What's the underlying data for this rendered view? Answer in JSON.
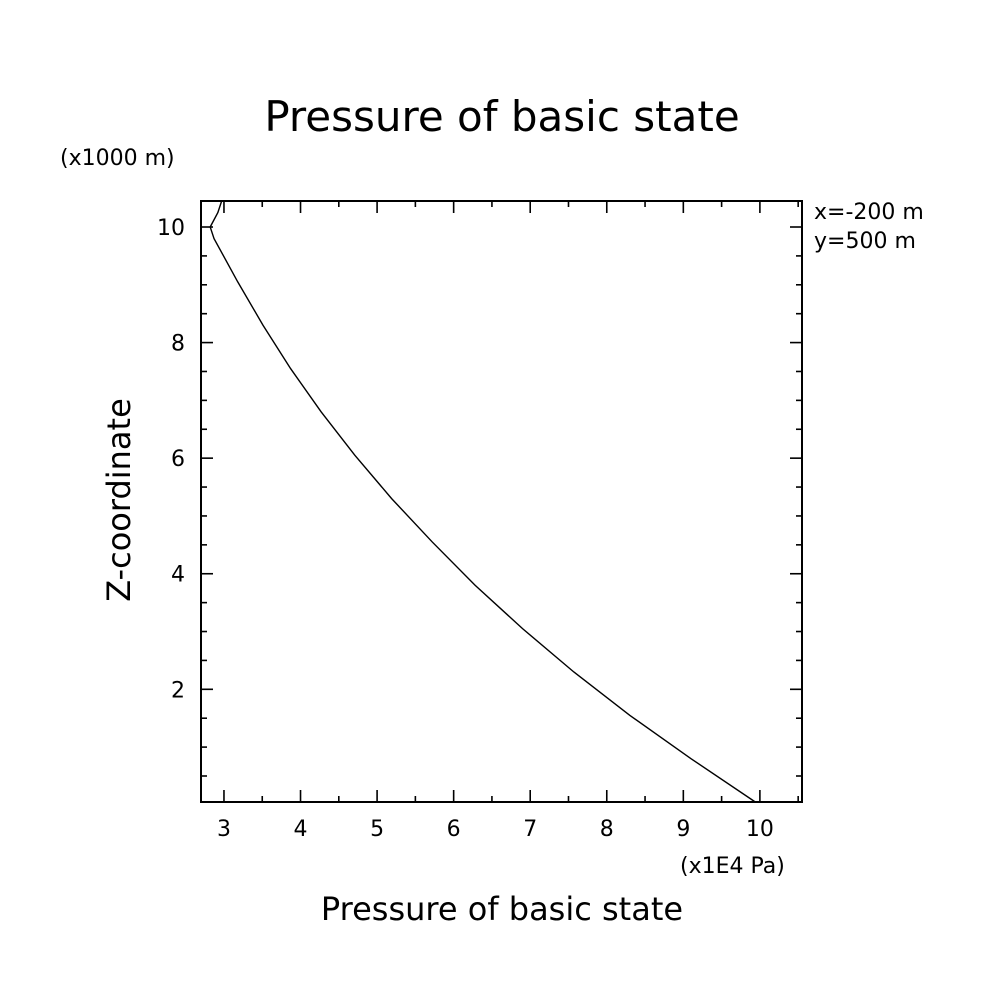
{
  "chart_data": {
    "type": "line",
    "title": "Pressure of basic state",
    "xlabel": "Pressure of basic state",
    "ylabel": "Z-coordinate",
    "x_unit": "(x1E4 Pa)",
    "y_unit": "(x1000 m)",
    "annotations": [
      "x=-200 m",
      "y=500 m"
    ],
    "xlim": [
      2.7,
      10.55
    ],
    "ylim": [
      0.05,
      10.45
    ],
    "x_ticks": [
      3,
      4,
      5,
      6,
      7,
      8,
      9,
      10
    ],
    "y_ticks": [
      2,
      4,
      6,
      8,
      10
    ],
    "grid": false,
    "series": [
      {
        "x": [
          9.94,
          9.1,
          8.3,
          7.57,
          6.9,
          6.28,
          5.72,
          5.19,
          4.71,
          4.27,
          3.87,
          3.51,
          3.18,
          2.87,
          2.82,
          2.92,
          2.97
        ],
        "y": [
          0.05,
          0.8,
          1.55,
          2.3,
          3.05,
          3.8,
          4.55,
          5.3,
          6.05,
          6.8,
          7.55,
          8.3,
          9.05,
          9.8,
          10.0,
          10.25,
          10.45
        ]
      }
    ]
  }
}
